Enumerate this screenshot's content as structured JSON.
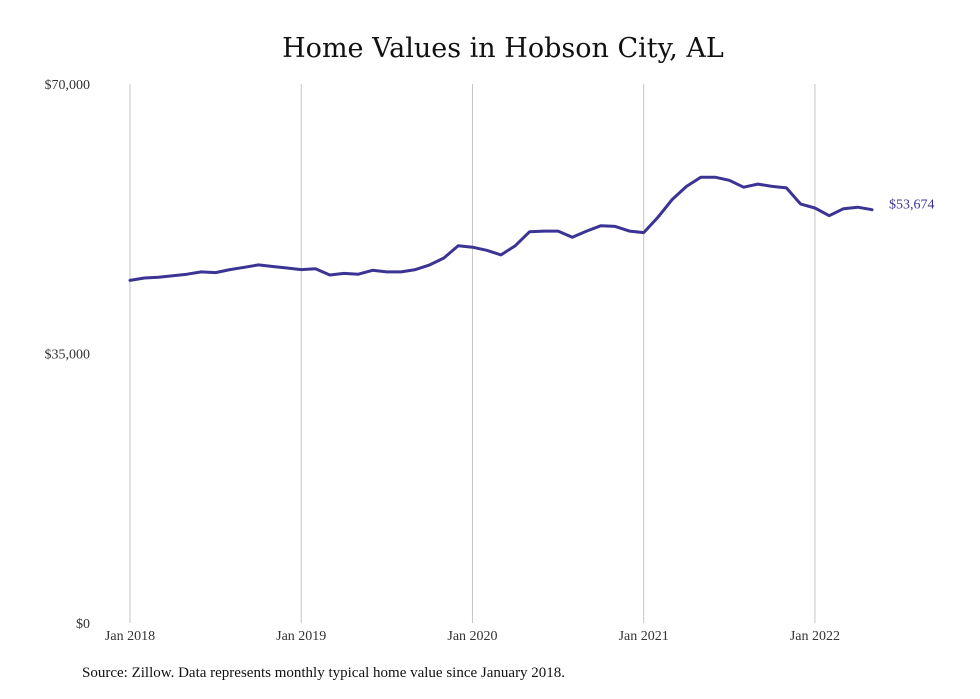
{
  "chart_data": {
    "type": "line",
    "title": "Home Values in Hobson City, AL",
    "xlabel": "",
    "ylabel": "",
    "ylim": [
      0,
      70000
    ],
    "yticks": [
      0,
      35000,
      70000
    ],
    "ytick_labels": [
      "$0",
      "$35,000",
      "$70,000"
    ],
    "xlim": [
      "2018-01",
      "2022-05"
    ],
    "xticks": [
      "2018-01",
      "2019-01",
      "2020-01",
      "2021-01",
      "2022-01"
    ],
    "xtick_labels": [
      "Jan 2018",
      "Jan 2019",
      "Jan 2020",
      "Jan 2021",
      "Jan 2022"
    ],
    "grid": "vertical",
    "legend": "none",
    "end_label": "$53,674",
    "series": [
      {
        "color": "#3b3494",
        "x": [
          "2018-01",
          "2018-02",
          "2018-03",
          "2018-04",
          "2018-05",
          "2018-06",
          "2018-07",
          "2018-08",
          "2018-09",
          "2018-10",
          "2018-11",
          "2018-12",
          "2019-01",
          "2019-02",
          "2019-03",
          "2019-04",
          "2019-05",
          "2019-06",
          "2019-07",
          "2019-08",
          "2019-09",
          "2019-10",
          "2019-11",
          "2019-12",
          "2020-01",
          "2020-02",
          "2020-03",
          "2020-04",
          "2020-05",
          "2020-06",
          "2020-07",
          "2020-08",
          "2020-09",
          "2020-10",
          "2020-11",
          "2020-12",
          "2021-01",
          "2021-02",
          "2021-03",
          "2021-04",
          "2021-05",
          "2021-06",
          "2021-07",
          "2021-08",
          "2021-09",
          "2021-10",
          "2021-11",
          "2021-12",
          "2022-01",
          "2022-02",
          "2022-03",
          "2022-04",
          "2022-05"
        ],
        "y": [
          44500,
          44800,
          44900,
          45100,
          45300,
          45600,
          45500,
          45900,
          46200,
          46500,
          46300,
          46100,
          45900,
          46000,
          45200,
          45400,
          45300,
          45800,
          45600,
          45600,
          45900,
          46500,
          47400,
          49000,
          48800,
          48400,
          47800,
          49000,
          50800,
          50900,
          50900,
          50100,
          50900,
          51600,
          51500,
          50900,
          50700,
          52700,
          55000,
          56700,
          57900,
          57900,
          57500,
          56600,
          57000,
          56700,
          56500,
          54400,
          53900,
          52900,
          53800,
          54000,
          53674
        ]
      }
    ]
  },
  "footer": {
    "source": "Source: Zillow. Data represents monthly typical home value since January 2018."
  }
}
